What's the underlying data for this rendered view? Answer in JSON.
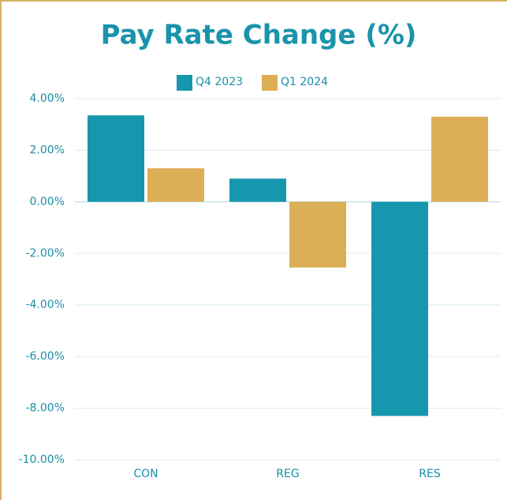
{
  "chart_data": {
    "type": "bar",
    "title": "Pay Rate Change (%)",
    "categories": [
      "CON",
      "REG",
      "RES"
    ],
    "series": [
      {
        "name": "Q4 2023",
        "color": "#1797ae",
        "values": [
          3.35,
          0.9,
          -8.3
        ]
      },
      {
        "name": "Q1 2024",
        "color": "#dcae56",
        "values": [
          1.3,
          -2.55,
          3.3
        ]
      }
    ],
    "ylim": [
      -10,
      4
    ],
    "yticks": [
      {
        "value": -10,
        "label": "-10.00%"
      },
      {
        "value": -8,
        "label": "-8.00%"
      },
      {
        "value": -6,
        "label": "-6.00%"
      },
      {
        "value": -4,
        "label": "-4.00%"
      },
      {
        "value": -2,
        "label": "-2.00%"
      },
      {
        "value": 0,
        "label": "0.00%"
      },
      {
        "value": 2,
        "label": "2.00%"
      },
      {
        "value": 4,
        "label": "4.00%"
      }
    ],
    "grid": true,
    "legend": "top"
  }
}
